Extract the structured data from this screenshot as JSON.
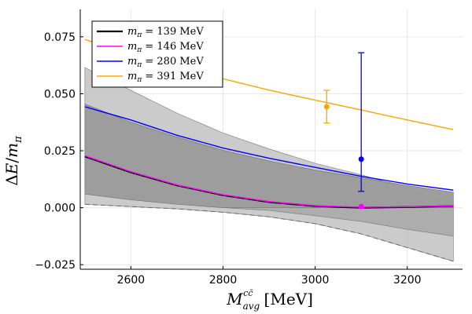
{
  "chart_data": {
    "type": "line",
    "title": "",
    "xlabel": "M_avg^{c c̄} [MeV]",
    "ylabel": "ΔE/m_π",
    "xlim": [
      2490,
      3320
    ],
    "ylim": [
      -0.027,
      0.087
    ],
    "xticks": [
      2600,
      2800,
      3000,
      3200
    ],
    "xtick_labels": [
      "2600",
      "2800",
      "3000",
      "3200"
    ],
    "yticks": [
      -0.025,
      0,
      0.025,
      0.05,
      0.075
    ],
    "ytick_labels": [
      "−0.025",
      "0.000",
      "0.025",
      "0.050",
      "0.075"
    ],
    "grid": true,
    "legend_position": "top-left",
    "series": [
      {
        "name": "m_π = 139 MeV",
        "mass": "139",
        "color": "#000000",
        "x": [
          2500,
          2600,
          2700,
          2800,
          2900,
          3000,
          3100,
          3200,
          3300
        ],
        "values": [
          0.0225,
          0.0155,
          0.0098,
          0.0055,
          0.0025,
          0.0007,
          0.0,
          0.0003,
          0.0007
        ]
      },
      {
        "name": "m_π = 146 MeV",
        "mass": "146",
        "color": "#ff00ff",
        "x": [
          2500,
          2600,
          2700,
          2800,
          2900,
          3000,
          3100,
          3200,
          3300
        ],
        "values": [
          0.0228,
          0.0158,
          0.01,
          0.0057,
          0.0027,
          0.0009,
          0.0002,
          0.0004,
          0.0008
        ]
      },
      {
        "name": "m_π = 280 MeV",
        "mass": "280",
        "color": "#0000ff",
        "x": [
          2500,
          2600,
          2700,
          2800,
          2900,
          3000,
          3100,
          3200,
          3300
        ],
        "values": [
          0.0443,
          0.0385,
          0.0318,
          0.0262,
          0.0217,
          0.0177,
          0.0138,
          0.0104,
          0.0077
        ]
      },
      {
        "name": "m_π = 391 MeV",
        "mass": "391",
        "color": "#ffa500",
        "x": [
          2500,
          2600,
          2700,
          2800,
          2900,
          3000,
          3100,
          3200,
          3300
        ],
        "values": [
          0.0738,
          0.0676,
          0.0618,
          0.0566,
          0.0516,
          0.0472,
          0.0429,
          0.0385,
          0.0343
        ]
      }
    ],
    "bands": [
      {
        "name": "outer",
        "color": "#c2c2c2",
        "x": [
          2500,
          2600,
          2700,
          2800,
          2900,
          3000,
          3100,
          3200,
          3300
        ],
        "upper": [
          0.0615,
          0.0515,
          0.0415,
          0.0328,
          0.0258,
          0.0195,
          0.0145,
          0.0085,
          0.0005
        ],
        "lower": [
          0.0015,
          0.0005,
          -0.0005,
          -0.002,
          -0.004,
          -0.007,
          -0.0115,
          -0.0175,
          -0.0235
        ]
      },
      {
        "name": "middle",
        "color": "#a8a8a8",
        "x": [
          2500,
          2600,
          2700,
          2800,
          2900,
          3000,
          3100,
          3200,
          3300
        ],
        "upper": [
          0.0455,
          0.0375,
          0.031,
          0.0252,
          0.0205,
          0.0165,
          0.0132,
          0.0097,
          0.0068
        ],
        "lower": [
          0.006,
          0.0035,
          0.0015,
          0.0,
          -0.0012,
          -0.0035,
          -0.006,
          -0.0095,
          -0.0125
        ]
      },
      {
        "name": "inner",
        "color": "#9a9a9a",
        "x": [
          2500,
          2600,
          2700,
          2800,
          2900,
          3000,
          3100,
          3200,
          3300
        ],
        "upper": [
          0.0455,
          0.0375,
          0.031,
          0.0252,
          0.0205,
          0.0165,
          0.0132,
          0.0097,
          0.0068
        ],
        "lower": [
          0.006,
          0.0035,
          0.0015,
          0.0,
          0.0,
          0.0,
          0.0,
          0.0,
          0.0
        ]
      }
    ],
    "dashed_lower": {
      "x": [
        2500,
        2600,
        2700,
        2800,
        2900,
        3000,
        3100,
        3200,
        3300
      ],
      "values": [
        0.0015,
        0.0005,
        -0.0005,
        -0.002,
        -0.004,
        -0.007,
        -0.0115,
        -0.0175,
        -0.0235
      ]
    },
    "points": [
      {
        "name": "391",
        "x": 3025,
        "y": 0.0443,
        "err_low": 0.0372,
        "err_high": 0.0515,
        "color": "#ffa500"
      },
      {
        "name": "280",
        "x": 3100,
        "y": 0.0213,
        "err_low": 0.0072,
        "err_high": 0.068,
        "color": "#0000ff"
      },
      {
        "name": "146",
        "x": 3100,
        "y": 0.0005,
        "err_low": null,
        "err_high": null,
        "color": "#ff00ff"
      }
    ]
  }
}
